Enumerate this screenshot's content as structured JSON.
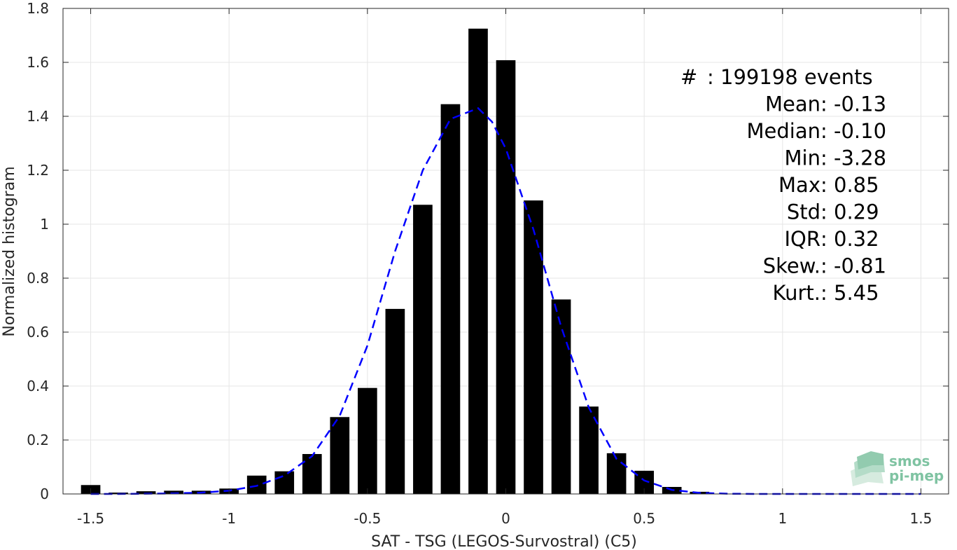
{
  "chart_data": {
    "type": "bar",
    "xlabel": "SAT - TSG (LEGOS-Survostral) (C5)",
    "ylabel": "Normalized histogram",
    "xlim": [
      -1.6,
      1.6
    ],
    "ylim": [
      0,
      1.8
    ],
    "xticks": [
      -1.5,
      -1,
      -0.5,
      0,
      0.5,
      1,
      1.5
    ],
    "xtick_labels": [
      "-1.5",
      "-1",
      "-0.5",
      "0",
      "0.5",
      "1",
      "1.5"
    ],
    "yticks": [
      0,
      0.2,
      0.4,
      0.6,
      0.8,
      1,
      1.2,
      1.4,
      1.6,
      1.8
    ],
    "ytick_labels": [
      "0",
      "0.2",
      "0.4",
      "0.6",
      "0.8",
      "1",
      "1.2",
      "1.4",
      "1.6",
      "1.8"
    ],
    "grid": true,
    "bar_width": 0.07,
    "bars": {
      "x": [
        -1.5,
        -1.4,
        -1.3,
        -1.2,
        -1.1,
        -1.0,
        -0.9,
        -0.8,
        -0.7,
        -0.6,
        -0.5,
        -0.4,
        -0.3,
        -0.2,
        -0.1,
        0.0,
        0.1,
        0.2,
        0.3,
        0.4,
        0.5,
        0.6,
        0.7
      ],
      "values": [
        0.033,
        0.005,
        0.01,
        0.012,
        0.012,
        0.02,
        0.068,
        0.084,
        0.148,
        0.285,
        0.393,
        0.686,
        1.072,
        1.445,
        1.725,
        1.608,
        1.088,
        0.721,
        0.324,
        0.151,
        0.086,
        0.026,
        0.008
      ],
      "color": "#000000"
    },
    "fit_curve": {
      "style": "dashed",
      "color": "#0000ff",
      "x": [
        -1.5,
        -1.4,
        -1.3,
        -1.2,
        -1.1,
        -1.0,
        -0.9,
        -0.8,
        -0.7,
        -0.6,
        -0.5,
        -0.4,
        -0.3,
        -0.2,
        -0.15,
        -0.1,
        -0.05,
        0.0,
        0.1,
        0.2,
        0.3,
        0.4,
        0.5,
        0.6,
        0.7,
        0.8,
        0.9,
        1.0,
        1.1,
        1.2,
        1.3,
        1.4,
        1.5
      ],
      "y": [
        0.0,
        0.0,
        0.001,
        0.002,
        0.005,
        0.012,
        0.03,
        0.068,
        0.14,
        0.29,
        0.55,
        0.9,
        1.2,
        1.39,
        1.41,
        1.43,
        1.38,
        1.28,
        0.98,
        0.62,
        0.32,
        0.13,
        0.05,
        0.015,
        0.004,
        0.001,
        0.0,
        0.0,
        0.0,
        0.0,
        0.0,
        0.0,
        0.0
      ]
    },
    "annotations": [
      {
        "label": "#  ",
        "value": ": 199198 events"
      },
      {
        "label": "Mean ",
        "value": ": -0.13"
      },
      {
        "label": "Median ",
        "value": ": -0.10"
      },
      {
        "label": "Min ",
        "value": ": -3.28"
      },
      {
        "label": "Max ",
        "value": ": 0.85"
      },
      {
        "label": "Std ",
        "value": ": 0.29"
      },
      {
        "label": "IQR ",
        "value": ": 0.32"
      },
      {
        "label": "Skew. ",
        "value": ": -0.81"
      },
      {
        "label": "Kurt. ",
        "value": ": 5.45"
      }
    ]
  },
  "logo": {
    "line1": "smos",
    "line2": "pi-mep",
    "color": "#7fc3a2"
  }
}
